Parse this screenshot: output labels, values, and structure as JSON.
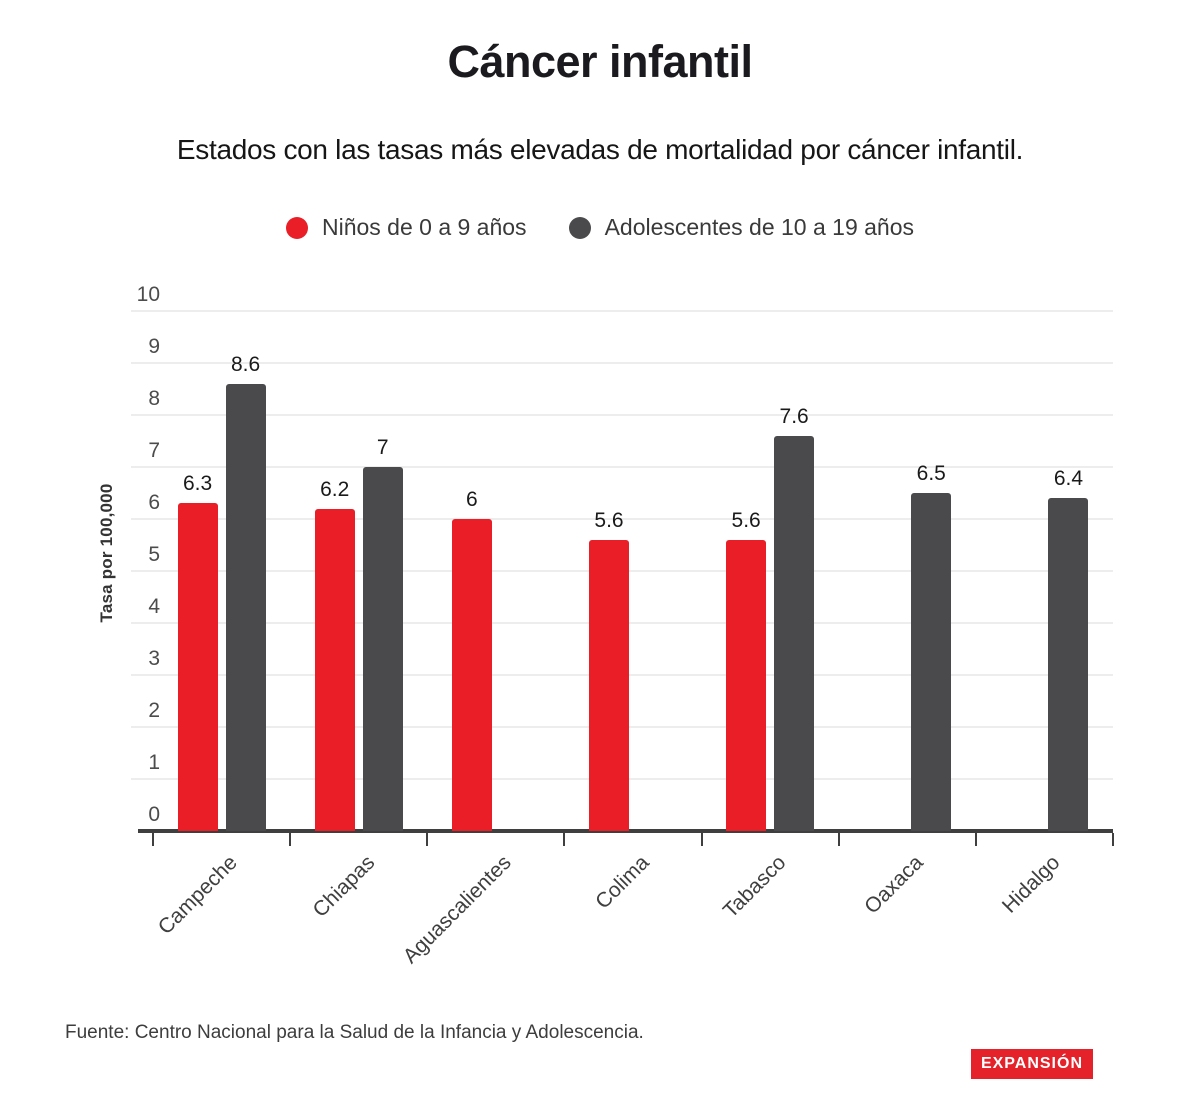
{
  "page": {
    "title": "Cáncer infantil",
    "subtitle": "Estados con las tasas más elevadas de mortalidad por cáncer infantil.",
    "source": "Fuente: Centro Nacional para la Salud de la Infancia y Adolescencia.",
    "brand_logo": "EXPANSIÓN"
  },
  "colors": {
    "series_red": "#e91e26",
    "series_gray": "#4a4a4d",
    "axis": "#3f3f3f",
    "gridline": "#ededed",
    "logo_background": "#e52129"
  },
  "chart_data": {
    "type": "bar",
    "title": "Cáncer infantil",
    "subtitle": "Estados con las tasas más elevadas de mortalidad por cáncer infantil.",
    "categories": [
      "Campeche",
      "Chiapas",
      "Aguascalientes",
      "Colima",
      "Tabasco",
      "Oaxaca",
      "Hidalgo"
    ],
    "series": [
      {
        "name": "Niños de 0 a 9 años",
        "color": "#e91e26",
        "values": [
          6.3,
          6.2,
          6,
          5.6,
          5.6,
          null,
          null
        ],
        "labels": [
          "6.3",
          "6.2",
          "6",
          "5.6",
          "5.6",
          null,
          null
        ]
      },
      {
        "name": "Adolescentes de 10 a 19 años",
        "color": "#4a4a4d",
        "values": [
          8.6,
          7,
          null,
          null,
          7.6,
          6.5,
          6.4
        ],
        "labels": [
          "8.6",
          "7",
          null,
          null,
          "7.6",
          "6.5",
          "6.4"
        ]
      }
    ],
    "xlabel": "",
    "ylabel": "Tasa por 100,000",
    "ylim": [
      0,
      10
    ],
    "y_ticks": [
      "0",
      "1",
      "2",
      "3",
      "4",
      "5",
      "6",
      "7",
      "8",
      "9",
      "10"
    ],
    "grid": true,
    "legend_position": "top"
  }
}
